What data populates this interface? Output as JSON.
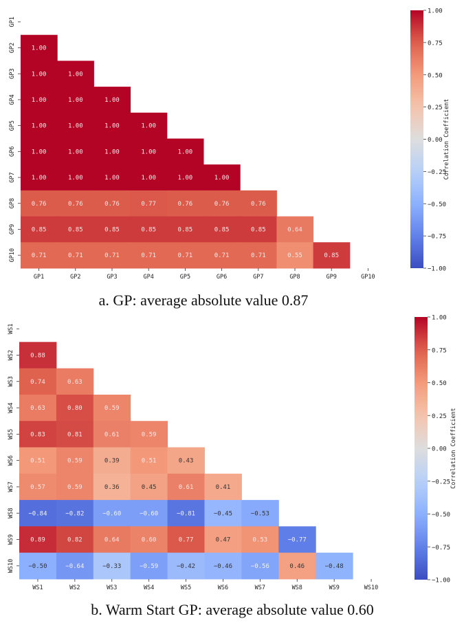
{
  "chart_data": [
    {
      "type": "heatmap",
      "id": "gp",
      "title": "a. GP: average absolute value 0.87",
      "mask": "lower-triangle",
      "x_labels": [
        "GP1",
        "GP2",
        "GP3",
        "GP4",
        "GP5",
        "GP6",
        "GP7",
        "GP8",
        "GP9",
        "GP10"
      ],
      "y_labels": [
        "GP1",
        "GP2",
        "GP3",
        "GP4",
        "GP5",
        "GP6",
        "GP7",
        "GP8",
        "GP9",
        "GP10"
      ],
      "rows": [
        [],
        [
          1.0
        ],
        [
          1.0,
          1.0
        ],
        [
          1.0,
          1.0,
          1.0
        ],
        [
          1.0,
          1.0,
          1.0,
          1.0
        ],
        [
          1.0,
          1.0,
          1.0,
          1.0,
          1.0
        ],
        [
          1.0,
          1.0,
          1.0,
          1.0,
          1.0,
          1.0
        ],
        [
          0.76,
          0.76,
          0.76,
          0.77,
          0.76,
          0.76,
          0.76
        ],
        [
          0.85,
          0.85,
          0.85,
          0.85,
          0.85,
          0.85,
          0.85,
          0.64
        ],
        [
          0.71,
          0.71,
          0.71,
          0.71,
          0.71,
          0.71,
          0.71,
          0.55,
          0.85
        ]
      ],
      "colorbar": {
        "label": "Correlation Coefficient",
        "range": [
          -1.0,
          1.0
        ],
        "ticks": [
          "1.00",
          "0.75",
          "0.50",
          "0.25",
          "0.00",
          "-0.25",
          "-0.50",
          "-0.75",
          "-1.00"
        ],
        "tick_values": [
          1.0,
          0.75,
          0.5,
          0.25,
          0.0,
          -0.25,
          -0.5,
          -0.75,
          -1.0
        ],
        "colormap": "coolwarm"
      }
    },
    {
      "type": "heatmap",
      "id": "ws",
      "title": "b. Warm Start GP: average absolute value 0.60",
      "mask": "lower-triangle",
      "x_labels": [
        "WS1",
        "WS2",
        "WS3",
        "WS4",
        "WS5",
        "WS6",
        "WS7",
        "WS8",
        "WS9",
        "WS10"
      ],
      "y_labels": [
        "WS1",
        "WS2",
        "WS3",
        "WS4",
        "WS5",
        "WS6",
        "WS7",
        "WS8",
        "WS9",
        "WS10"
      ],
      "rows": [
        [],
        [
          0.88
        ],
        [
          0.74,
          0.63
        ],
        [
          0.63,
          0.8,
          0.59
        ],
        [
          0.83,
          0.81,
          0.61,
          0.59
        ],
        [
          0.51,
          0.59,
          0.39,
          0.51,
          0.43
        ],
        [
          0.57,
          0.59,
          0.36,
          0.45,
          0.61,
          0.41
        ],
        [
          -0.84,
          -0.82,
          -0.6,
          -0.6,
          -0.81,
          -0.45,
          -0.53
        ],
        [
          0.89,
          0.82,
          0.64,
          0.6,
          0.77,
          0.47,
          0.53,
          -0.77
        ],
        [
          -0.5,
          -0.64,
          -0.33,
          -0.59,
          -0.42,
          -0.46,
          -0.56,
          0.46,
          -0.48
        ]
      ],
      "colorbar": {
        "label": "Correlation Coefficient",
        "range": [
          -1.0,
          1.0
        ],
        "ticks": [
          "1.00",
          "0.75",
          "0.50",
          "0.25",
          "0.00",
          "-0.25",
          "-0.50",
          "-0.75",
          "-1.00"
        ],
        "tick_values": [
          1.0,
          0.75,
          0.5,
          0.25,
          0.0,
          -0.25,
          -0.5,
          -0.75,
          -1.0
        ],
        "colormap": "coolwarm"
      }
    }
  ],
  "captions": {
    "a": "a. GP: average absolute value 0.87",
    "b": "b. Warm Start GP: average absolute value 0.60"
  }
}
